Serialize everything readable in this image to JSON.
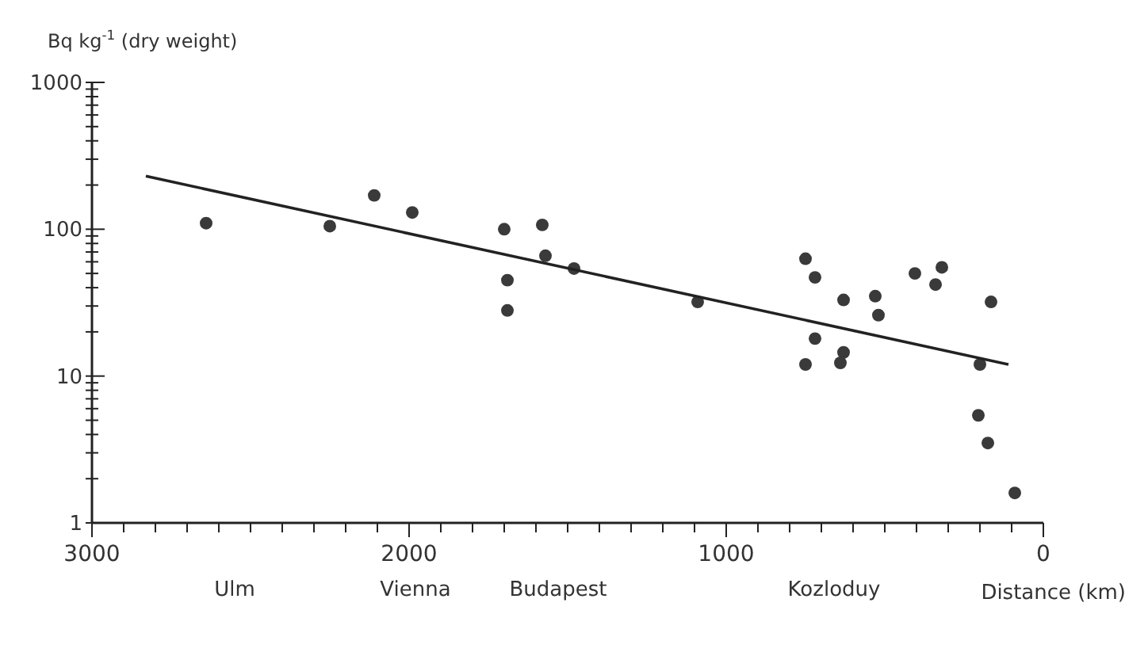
{
  "chart_data": {
    "type": "scatter",
    "ylabel": "Bq kg$^{-1}$ (dry weight)",
    "xlabel": "Distance (km)",
    "log": "y",
    "xlim": [
      3000,
      0
    ],
    "ylim": [
      1,
      1000
    ],
    "xticks": [
      3000,
      {
        "value": 2900,
        "label": null
      },
      {
        "value": 2800,
        "label": null
      },
      {
        "value": 2700,
        "label": null
      },
      {
        "value": 2600,
        "label": null
      },
      {
        "value": 2500,
        "label": null
      },
      {
        "value": 2400,
        "label": null
      },
      {
        "value": 2300,
        "label": null
      },
      {
        "value": 2200,
        "label": null
      },
      {
        "value": 2100,
        "label": null
      },
      2000,
      {
        "value": 1900,
        "label": null
      },
      {
        "value": 1800,
        "label": null
      },
      {
        "value": 1700,
        "label": null
      },
      {
        "value": 1600,
        "label": null
      },
      {
        "value": 1500,
        "label": null
      },
      {
        "value": 1400,
        "label": null
      },
      {
        "value": 1300,
        "label": null
      },
      {
        "value": 1200,
        "label": null
      },
      {
        "value": 1100,
        "label": null
      },
      1000,
      {
        "value": 900,
        "label": null
      },
      {
        "value": 800,
        "label": null
      },
      {
        "value": 700,
        "label": null
      },
      {
        "value": 600,
        "label": null
      },
      {
        "value": 500,
        "label": null
      },
      {
        "value": 400,
        "label": null
      },
      {
        "value": 300,
        "label": null
      },
      {
        "value": 200,
        "label": null
      },
      {
        "value": 100,
        "label": null
      },
      0
    ],
    "yticks": [
      1,
      {
        "value": 2,
        "label": null
      },
      {
        "value": 3,
        "label": null
      },
      {
        "value": 4,
        "label": null
      },
      {
        "value": 5,
        "label": null
      },
      {
        "value": 6,
        "label": null
      },
      {
        "value": 7,
        "label": null
      },
      {
        "value": 8,
        "label": null
      },
      {
        "value": 9,
        "label": null
      },
      10,
      {
        "value": 20,
        "label": null
      },
      {
        "value": 30,
        "label": null
      },
      {
        "value": 40,
        "label": null
      },
      {
        "value": 50,
        "label": null
      },
      {
        "value": 60,
        "label": null
      },
      {
        "value": 70,
        "label": null
      },
      {
        "value": 80,
        "label": null
      },
      {
        "value": 90,
        "label": null
      },
      100,
      {
        "value": 200,
        "label": null
      },
      {
        "value": 300,
        "label": null
      },
      {
        "value": 400,
        "label": null
      },
      {
        "value": 500,
        "label": null
      },
      {
        "value": 600,
        "label": null
      },
      {
        "value": 700,
        "label": null
      },
      {
        "value": 800,
        "label": null
      },
      {
        "value": 900,
        "label": null
      },
      1000
    ],
    "marker": "circle",
    "grid": false,
    "series": [
      {
        "color": "#3a3a3a",
        "x": [
          2640,
          2250,
          2110,
          1990,
          1700,
          1690,
          1690,
          1580,
          1570,
          1480,
          1090,
          750,
          720,
          720,
          750,
          630,
          630,
          640,
          530,
          520,
          405,
          340,
          320,
          165,
          200,
          205,
          175,
          90
        ],
        "values": [
          110,
          105,
          170,
          130,
          100,
          45,
          28,
          107,
          66,
          54,
          32,
          63,
          47,
          18,
          12,
          33,
          14.5,
          12.3,
          35,
          26,
          50,
          42,
          55,
          32,
          12,
          5.4,
          3.5,
          1.6
        ]
      },
      {
        "type": "line",
        "color": "#222222",
        "x": [
          2830,
          110
        ],
        "values": [
          230,
          12
        ],
        "marker": "none",
        "line_style": "solid"
      }
    ],
    "annotations": [
      "Ulm",
      "Vienna",
      "Budapest",
      "Kozloduy"
    ]
  }
}
